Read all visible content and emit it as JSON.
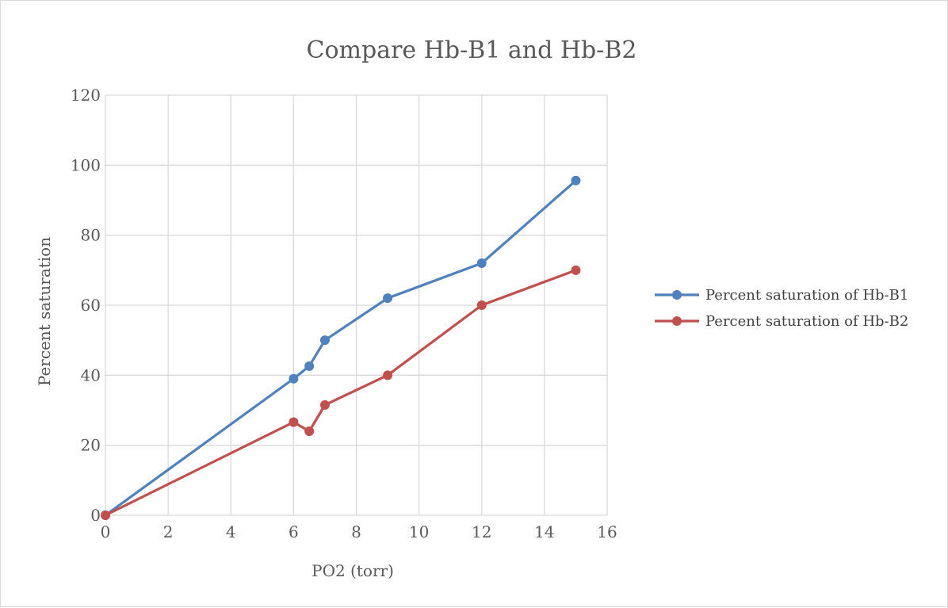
{
  "chart_data": {
    "type": "scatter",
    "title": "Compare Hb-B1 and Hb-B2",
    "xlabel": "PO2 (torr)",
    "ylabel": "Percent saturation",
    "xlim": [
      0,
      16
    ],
    "ylim": [
      0,
      120
    ],
    "x_ticks": [
      "0",
      "2",
      "4",
      "6",
      "8",
      "10",
      "12",
      "14",
      "16"
    ],
    "y_ticks": [
      "0",
      "20",
      "40",
      "60",
      "80",
      "100",
      "120"
    ],
    "grid": true,
    "legend_position": "right",
    "series": [
      {
        "name": "Percent saturation of Hb-B1",
        "color": "#4f81bd",
        "points": [
          {
            "x": 0,
            "y": 0
          },
          {
            "x": 6,
            "y": 39
          },
          {
            "x": 6.5,
            "y": 42.6
          },
          {
            "x": 7,
            "y": 50
          },
          {
            "x": 9,
            "y": 62
          },
          {
            "x": 12,
            "y": 72
          },
          {
            "x": 15,
            "y": 95.6
          }
        ]
      },
      {
        "name": "Percent saturation of Hb-B2",
        "color": "#c0504d",
        "points": [
          {
            "x": 0,
            "y": 0
          },
          {
            "x": 6,
            "y": 26.6
          },
          {
            "x": 6.5,
            "y": 24
          },
          {
            "x": 7,
            "y": 31.5
          },
          {
            "x": 9,
            "y": 40
          },
          {
            "x": 12,
            "y": 60
          },
          {
            "x": 15,
            "y": 70
          }
        ]
      }
    ]
  }
}
